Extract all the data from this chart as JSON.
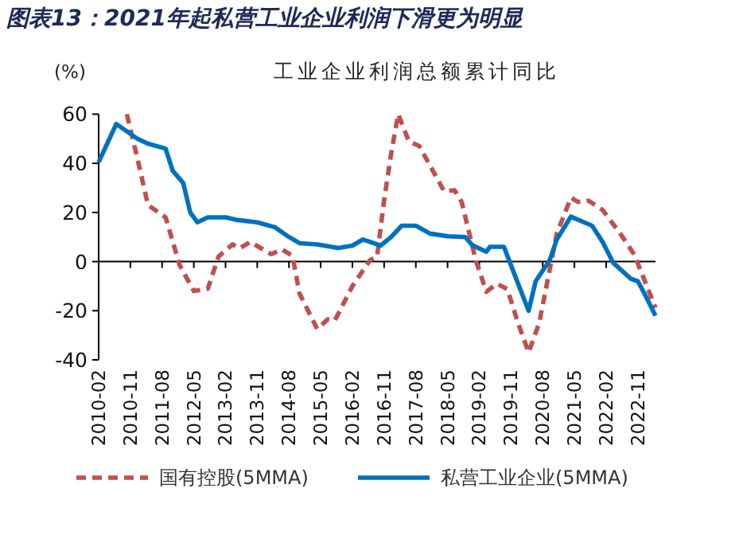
{
  "chart_data": {
    "type": "line",
    "title": "图表13：2021年起私营工业企业利润下滑更为明显",
    "subtitle": "工业企业利润总额累计同比",
    "ylabel": "(%)",
    "xlim": [
      "2010-02",
      "2023-04"
    ],
    "xticks": [
      "2010-02",
      "2010-11",
      "2011-08",
      "2012-05",
      "2013-02",
      "2013-11",
      "2014-08",
      "2015-05",
      "2016-02",
      "2016-11",
      "2017-08",
      "2018-05",
      "2019-02",
      "2019-11",
      "2020-08",
      "2021-05",
      "2022-02",
      "2022-11"
    ],
    "ylim": [
      -40,
      60
    ],
    "yticks": [
      -40,
      -20,
      0,
      20,
      40,
      60
    ],
    "legend": "bottom",
    "series": [
      {
        "name": "国有控股(5MMA)",
        "color": "#c0504d",
        "line_style": "dashed",
        "x": [
          "2010-10",
          "2011-01",
          "2011-04",
          "2011-06",
          "2011-09",
          "2012-01",
          "2012-05",
          "2012-09",
          "2012-12",
          "2013-04",
          "2013-06",
          "2013-09",
          "2014-03",
          "2014-06",
          "2014-09",
          "2014-11",
          "2015-04",
          "2015-07",
          "2015-09",
          "2016-02",
          "2016-07",
          "2016-09",
          "2016-11",
          "2017-01",
          "2017-03",
          "2017-06",
          "2017-09",
          "2018-04",
          "2018-07",
          "2018-09",
          "2019-01",
          "2019-04",
          "2019-07",
          "2019-10",
          "2020-01",
          "2020-04",
          "2020-07",
          "2020-12",
          "2021-04",
          "2021-06",
          "2021-09",
          "2022-01",
          "2022-06",
          "2022-10",
          "2023-04"
        ],
        "values": [
          60,
          42,
          23,
          21,
          18,
          -1.5,
          -12,
          -11,
          2,
          7,
          5.4,
          8,
          3,
          5,
          2.3,
          -13,
          -27.4,
          -23.5,
          -24,
          -10,
          0.6,
          2,
          25,
          44,
          60,
          49,
          47,
          28.7,
          29,
          24.3,
          0.6,
          -12.3,
          -9,
          -11.3,
          -25,
          -37,
          -25,
          11.4,
          26,
          24.3,
          24.8,
          21,
          11.4,
          2.8,
          -18.8
        ]
      },
      {
        "name": "私营工业企业(5MMA)",
        "color": "#0070c0",
        "line_style": "solid",
        "x": [
          "2010-02",
          "2010-07",
          "2011-01",
          "2011-04",
          "2011-09",
          "2011-11",
          "2012-02",
          "2012-04",
          "2012-06",
          "2012-09",
          "2013-02",
          "2013-05",
          "2013-11",
          "2014-04",
          "2014-08",
          "2014-11",
          "2015-04",
          "2015-10",
          "2016-02",
          "2016-05",
          "2016-07",
          "2016-10",
          "2017-01",
          "2017-04",
          "2017-08",
          "2017-12",
          "2018-05",
          "2018-10",
          "2018-12",
          "2019-04",
          "2019-05",
          "2019-09",
          "2019-11",
          "2020-01",
          "2020-04",
          "2020-06",
          "2020-10",
          "2020-12",
          "2021-02",
          "2021-04",
          "2021-10",
          "2022-01",
          "2022-04",
          "2022-09",
          "2022-11",
          "2023-01",
          "2023-04"
        ],
        "values": [
          40.5,
          56,
          50,
          48,
          46,
          37,
          32,
          20,
          16,
          18,
          18,
          17,
          16,
          14,
          10,
          7.5,
          7,
          5.5,
          6.5,
          9,
          8,
          6.5,
          10,
          14.6,
          14.6,
          11.4,
          10.3,
          10,
          6.7,
          4,
          6,
          6,
          -1.5,
          -9,
          -20,
          -8,
          0.6,
          9,
          13.6,
          18.3,
          14.6,
          8,
          -0.5,
          -7,
          -8,
          -13.4,
          -22
        ]
      }
    ]
  }
}
